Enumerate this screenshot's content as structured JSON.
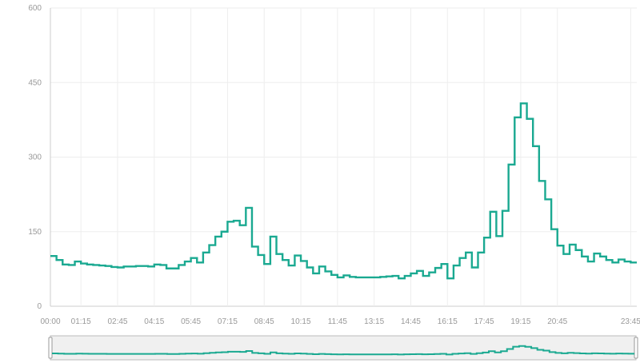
{
  "chart_data": {
    "type": "line",
    "step": true,
    "grid": true,
    "colors": {
      "series": "#1aa991",
      "grid": "#eeeeee",
      "axis": "#cccccc",
      "tick_text": "#999999",
      "navigator_bg": "#f0f0f0",
      "navigator_border": "#bbbbbb"
    },
    "ylim": [
      0,
      600
    ],
    "yticks": [
      "0",
      "150",
      "300",
      "450",
      "600"
    ],
    "xticks": [
      "00:00",
      "01:15",
      "02:45",
      "04:15",
      "05:45",
      "07:15",
      "08:45",
      "10:15",
      "11:45",
      "13:15",
      "14:45",
      "16:15",
      "17:45",
      "19:15",
      "20:45",
      "23:45"
    ],
    "x_interval_minutes": 15,
    "x": [
      "00:00",
      "00:15",
      "00:30",
      "00:45",
      "01:00",
      "01:15",
      "01:30",
      "01:45",
      "02:00",
      "02:15",
      "02:30",
      "02:45",
      "03:00",
      "03:15",
      "03:30",
      "03:45",
      "04:00",
      "04:15",
      "04:30",
      "04:45",
      "05:00",
      "05:15",
      "05:30",
      "05:45",
      "06:00",
      "06:15",
      "06:30",
      "06:45",
      "07:00",
      "07:15",
      "07:30",
      "07:45",
      "08:00",
      "08:15",
      "08:30",
      "08:45",
      "09:00",
      "09:15",
      "09:30",
      "09:45",
      "10:00",
      "10:15",
      "10:30",
      "10:45",
      "11:00",
      "11:15",
      "11:30",
      "11:45",
      "12:00",
      "12:15",
      "12:30",
      "12:45",
      "13:00",
      "13:15",
      "13:30",
      "13:45",
      "14:00",
      "14:15",
      "14:30",
      "14:45",
      "15:00",
      "15:15",
      "15:30",
      "15:45",
      "16:00",
      "16:15",
      "16:30",
      "16:45",
      "17:00",
      "17:15",
      "17:30",
      "17:45",
      "18:00",
      "18:15",
      "18:30",
      "18:45",
      "19:00",
      "19:15",
      "19:30",
      "19:45",
      "20:00",
      "20:15",
      "20:30",
      "20:45",
      "21:00",
      "21:15",
      "21:30",
      "21:45",
      "22:00",
      "22:15",
      "22:30",
      "22:45",
      "23:00",
      "23:15",
      "23:30",
      "23:45"
    ],
    "series": [
      {
        "values": [
          101,
          93,
          84,
          83,
          90,
          86,
          84,
          83,
          82,
          81,
          79,
          78,
          80,
          80,
          81,
          81,
          80,
          84,
          83,
          76,
          76,
          83,
          90,
          97,
          88,
          108,
          123,
          140,
          150,
          170,
          172,
          163,
          198,
          120,
          103,
          85,
          140,
          105,
          93,
          82,
          102,
          91,
          78,
          66,
          80,
          70,
          63,
          58,
          62,
          59,
          58,
          58,
          58,
          58,
          59,
          60,
          61,
          56,
          61,
          66,
          71,
          61,
          68,
          77,
          85,
          56,
          82,
          97,
          108,
          78,
          108,
          138,
          190,
          141,
          192,
          285,
          380,
          408,
          377,
          322,
          252,
          215,
          155,
          122,
          105,
          124,
          113,
          100,
          90,
          106,
          100,
          93,
          88,
          94,
          90,
          88
        ]
      }
    ]
  }
}
